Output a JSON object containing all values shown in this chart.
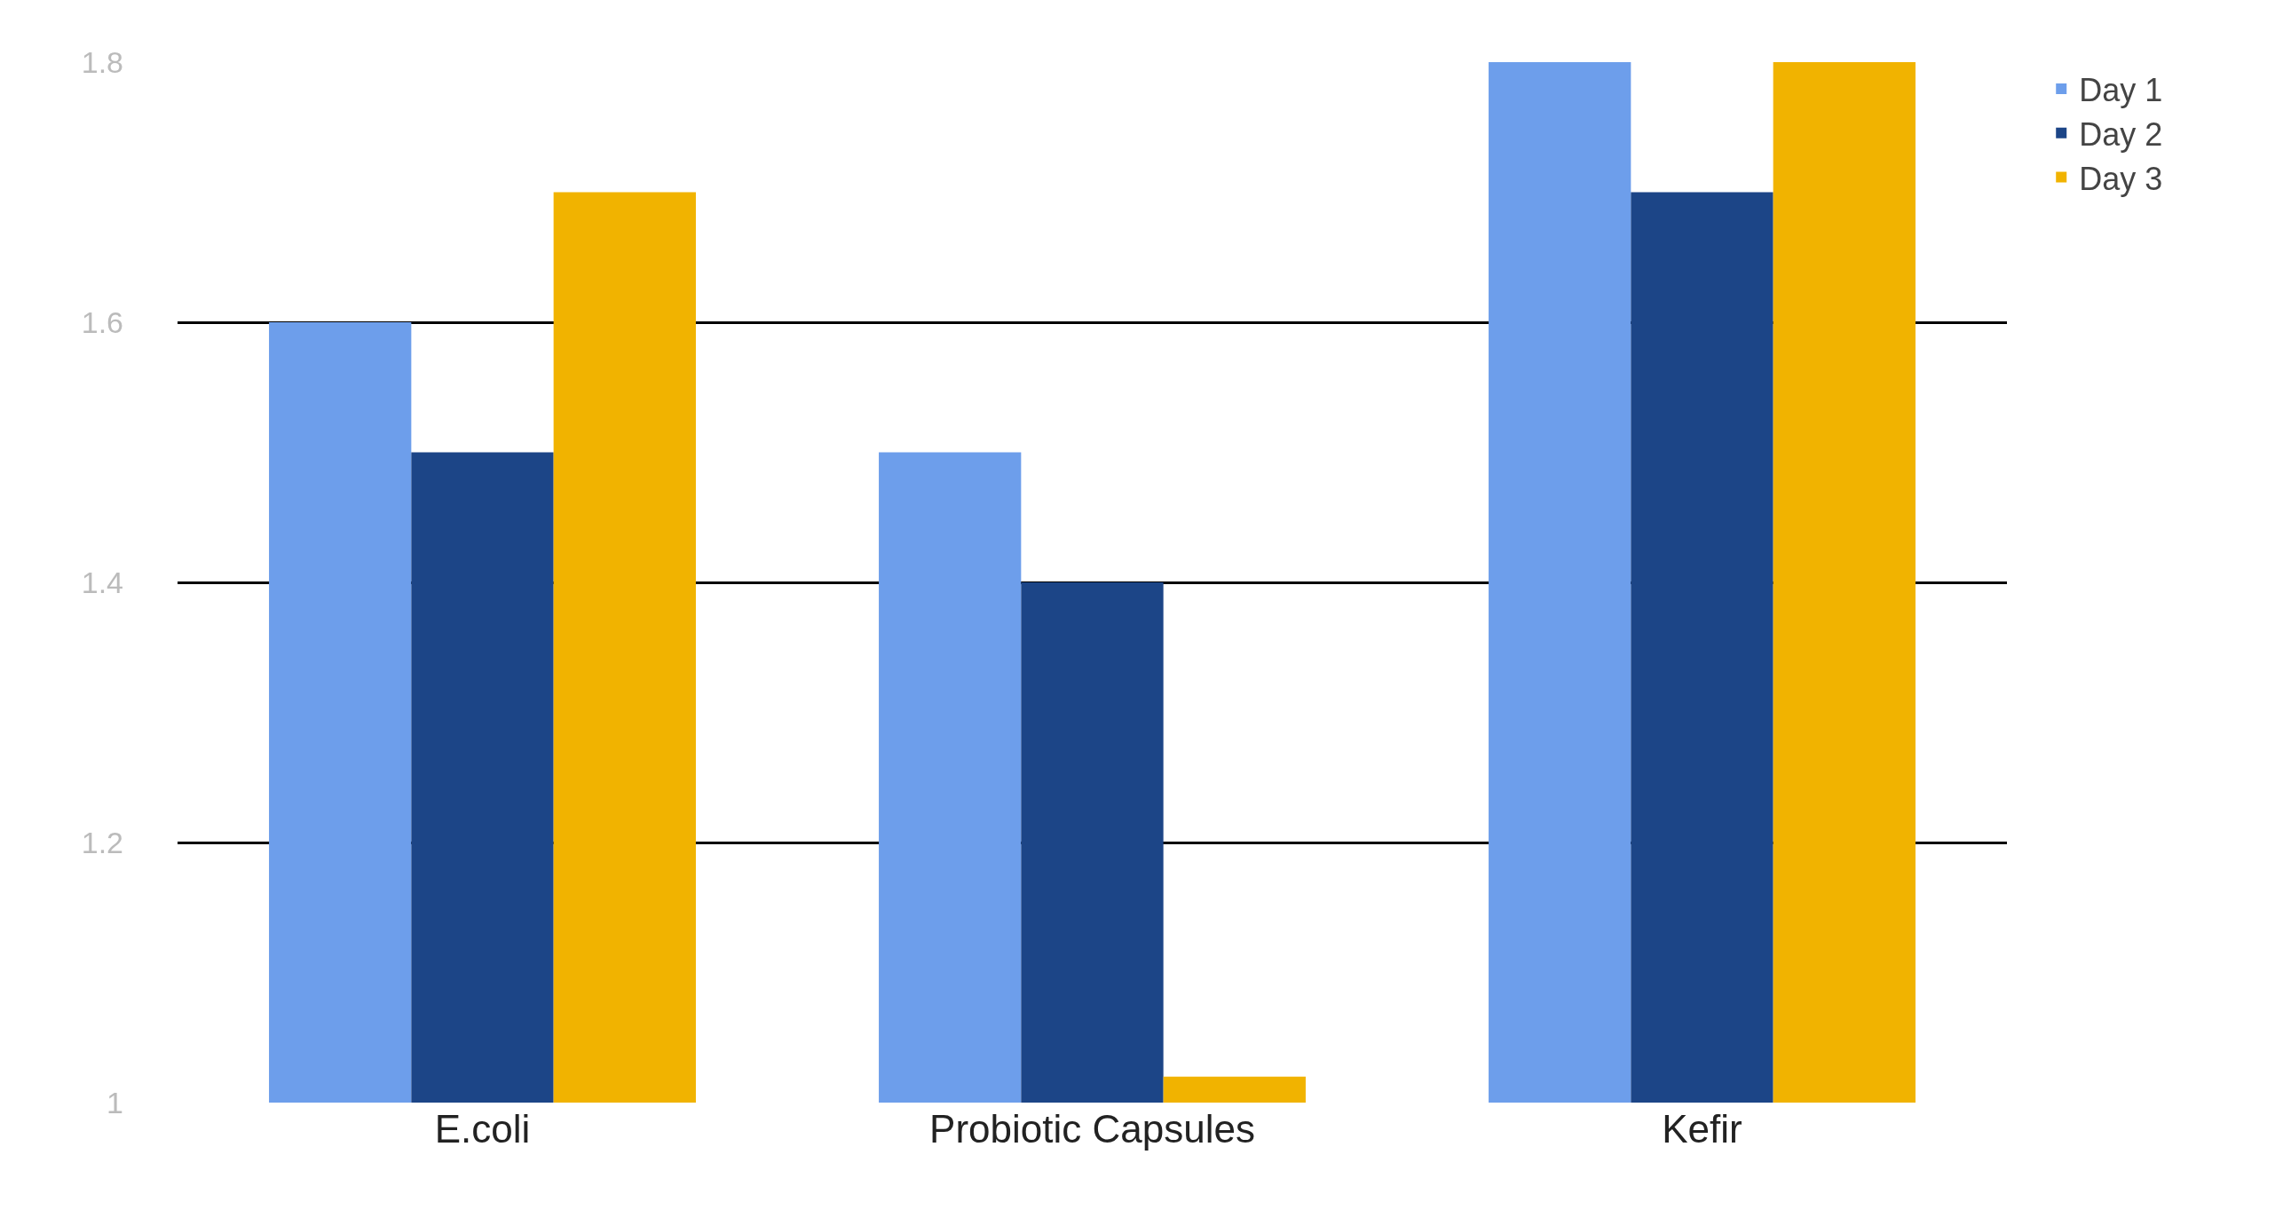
{
  "chart_data": {
    "type": "bar",
    "categories": [
      "E.coli",
      "Probiotic Capsules",
      "Kefir"
    ],
    "series": [
      {
        "name": "Day 1",
        "color": "#6d9eeb",
        "values": [
          1.6,
          1.5,
          1.8
        ]
      },
      {
        "name": "Day 2",
        "color": "#1c4587",
        "values": [
          1.5,
          1.4,
          1.7
        ]
      },
      {
        "name": "Day 3",
        "color": "#f1b300",
        "values": [
          1.7,
          1.02,
          1.8
        ]
      }
    ],
    "ylim": [
      1,
      1.8
    ],
    "yticks": [
      1,
      1.2,
      1.4,
      1.6,
      1.8
    ],
    "grid": "y",
    "legend": "top right"
  }
}
